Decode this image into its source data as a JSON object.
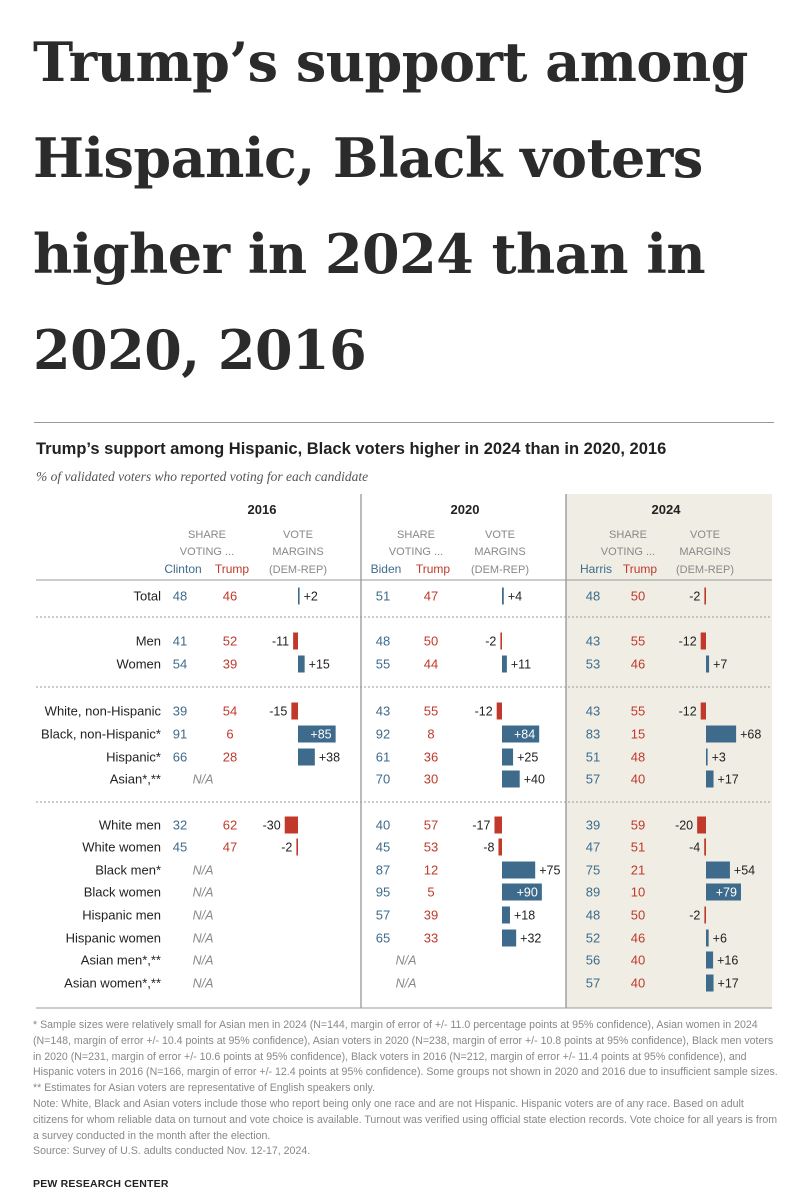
{
  "headline": "Trump’s support among Hispanic, Black voters higher in 2024 than in 2020, 2016",
  "chart_data": {
    "type": "table",
    "title": "Trump’s support among Hispanic, Black voters higher in 2024 than in 2020, 2016",
    "subtitle": "% of validated voters who reported voting for each candidate",
    "column_headers": {
      "share": "SHARE",
      "voting": "VOTING ...",
      "vote": "VOTE",
      "margins": "MARGINS",
      "dem_rep": "(DEM-REP)"
    },
    "na_label": "N/A",
    "colors": {
      "dem": "#3e6b8c",
      "rep": "#c0392b",
      "highlight_bg": "#efede4"
    },
    "years": [
      {
        "year": "2016",
        "dem": "Clinton",
        "rep": "Trump"
      },
      {
        "year": "2020",
        "dem": "Biden",
        "rep": "Trump"
      },
      {
        "year": "2024",
        "dem": "Harris",
        "rep": "Trump"
      }
    ],
    "groups": [
      {
        "rows": [
          {
            "label": "Total",
            "data": [
              [
                48,
                46,
                "+2"
              ],
              [
                51,
                47,
                "+4"
              ],
              [
                48,
                50,
                "-2"
              ]
            ]
          }
        ]
      },
      {
        "rows": [
          {
            "label": "Men",
            "data": [
              [
                41,
                52,
                "-11"
              ],
              [
                48,
                50,
                "-2"
              ],
              [
                43,
                55,
                "-12"
              ]
            ]
          },
          {
            "label": "Women",
            "data": [
              [
                54,
                39,
                "+15"
              ],
              [
                55,
                44,
                "+11"
              ],
              [
                53,
                46,
                "+7"
              ]
            ]
          }
        ]
      },
      {
        "rows": [
          {
            "label": "White, non-Hispanic",
            "data": [
              [
                39,
                54,
                "-15"
              ],
              [
                43,
                55,
                "-12"
              ],
              [
                43,
                55,
                "-12"
              ]
            ]
          },
          {
            "label": "Black, non-Hispanic*",
            "data": [
              [
                91,
                6,
                "+85"
              ],
              [
                92,
                8,
                "+84"
              ],
              [
                83,
                15,
                "+68"
              ]
            ]
          },
          {
            "label": "Hispanic*",
            "data": [
              [
                66,
                28,
                "+38"
              ],
              [
                61,
                36,
                "+25"
              ],
              [
                51,
                48,
                "+3"
              ]
            ]
          },
          {
            "label": "Asian*,**",
            "data": [
              null,
              [
                70,
                30,
                "+40"
              ],
              [
                57,
                40,
                "+17"
              ]
            ]
          }
        ]
      },
      {
        "rows": [
          {
            "label": "White men",
            "data": [
              [
                32,
                62,
                "-30"
              ],
              [
                40,
                57,
                "-17"
              ],
              [
                39,
                59,
                "-20"
              ]
            ]
          },
          {
            "label": "White women",
            "data": [
              [
                45,
                47,
                "-2"
              ],
              [
                45,
                53,
                "-8"
              ],
              [
                47,
                51,
                "-4"
              ]
            ]
          },
          {
            "label": "Black men*",
            "data": [
              null,
              [
                87,
                12,
                "+75"
              ],
              [
                75,
                21,
                "+54"
              ]
            ]
          },
          {
            "label": "Black women",
            "data": [
              null,
              [
                95,
                5,
                "+90"
              ],
              [
                89,
                10,
                "+79"
              ]
            ]
          },
          {
            "label": "Hispanic men",
            "data": [
              null,
              [
                57,
                39,
                "+18"
              ],
              [
                48,
                50,
                "-2"
              ]
            ]
          },
          {
            "label": "Hispanic women",
            "data": [
              null,
              [
                65,
                33,
                "+32"
              ],
              [
                52,
                46,
                "+6"
              ]
            ]
          },
          {
            "label": "Asian men*,**",
            "data": [
              null,
              null,
              [
                56,
                40,
                "+16"
              ]
            ]
          },
          {
            "label": "Asian women*,**",
            "data": [
              null,
              null,
              [
                57,
                40,
                "+17"
              ]
            ]
          }
        ]
      }
    ]
  },
  "footnotes": [
    "* Sample sizes were relatively small for Asian men in 2024 (N=144, margin of error of +/- 11.0 percentage points at 95% confidence), Asian women in 2024 (N=148, margin of error +/- 10.4 points at 95% confidence), Asian voters in 2020 (N=238, margin of error +/- 10.8 points at 95% confidence), Black men voters in 2020 (N=231, margin of error +/- 10.6 points at 95% confidence), Black voters in 2016 (N=212, margin of error +/- 11.4 points at 95% confidence), and Hispanic voters in 2016 (N=166, margin of error +/- 12.4 points at 95% confidence). Some groups not shown in 2020 and 2016 due to insufficient sample sizes.",
    "** Estimates for Asian voters are representative of English speakers only.",
    "Note: White, Black and Asian voters include those who report being only one race and are not Hispanic. Hispanic voters are of any race. Based on adult citizens for whom reliable data on turnout and vote choice is available. Turnout was verified using official state election records. Vote choice for all years is from a survey conducted in the month after the election.",
    "Source: Survey of U.S. adults conducted Nov. 12-17, 2024."
  ],
  "source_credit": "PEW RESEARCH CENTER"
}
